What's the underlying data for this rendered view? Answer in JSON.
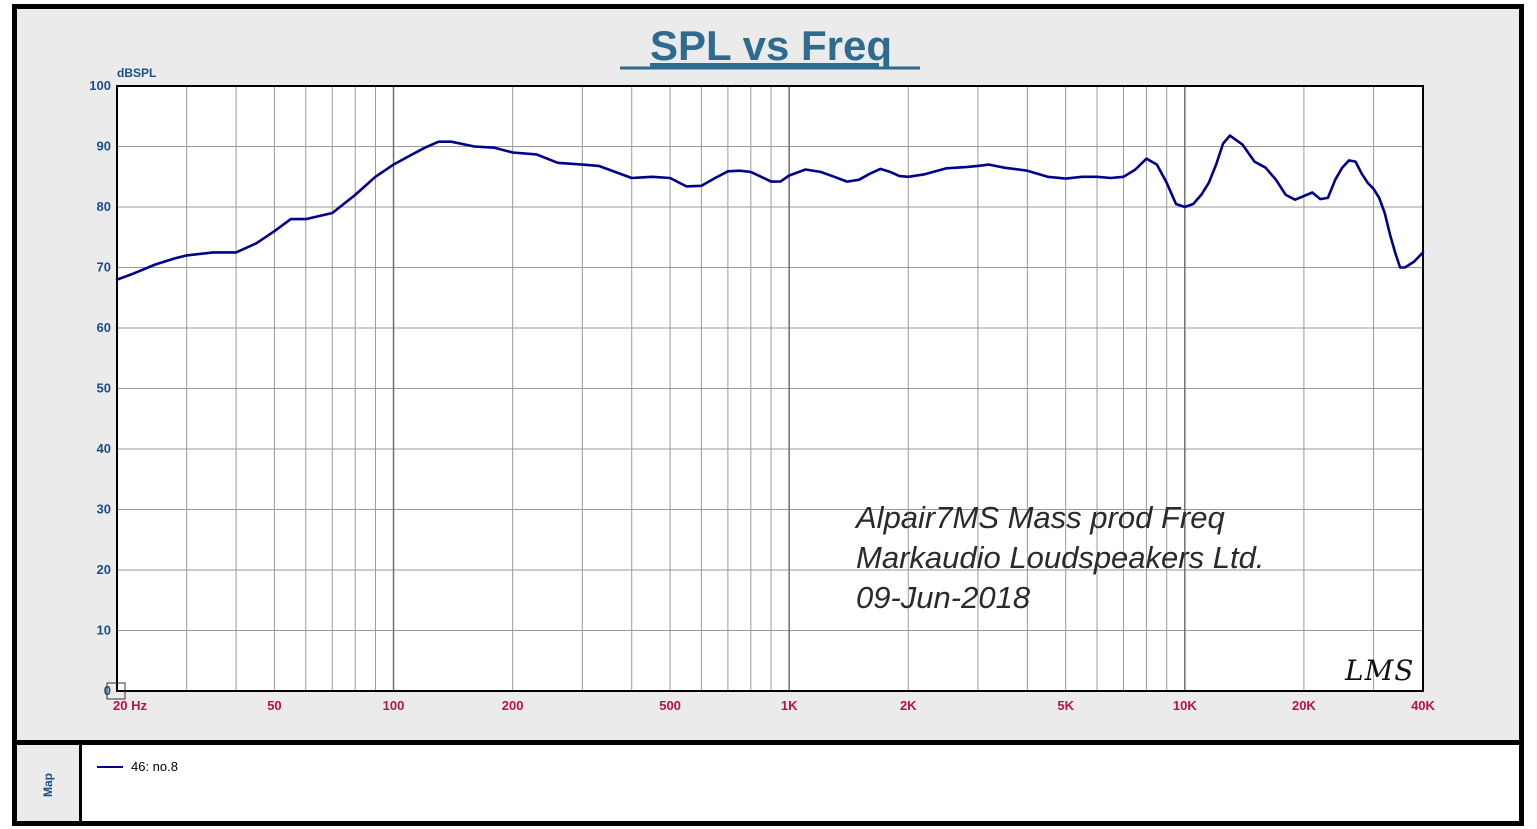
{
  "chart_data": {
    "type": "line",
    "title": "SPL vs Freq",
    "ylabel": "dBSPL",
    "xlabel": "",
    "x_scale": "log",
    "xlim": [
      20,
      40000
    ],
    "ylim": [
      0,
      100
    ],
    "y_ticks": [
      0,
      10,
      20,
      30,
      40,
      50,
      60,
      70,
      80,
      90,
      100
    ],
    "y_tick_labels": [
      "0",
      "10",
      "20",
      "30",
      "40",
      "50",
      "60",
      "70",
      "80",
      "90",
      "100"
    ],
    "x_ticks": [
      20,
      50,
      100,
      200,
      500,
      1000,
      2000,
      5000,
      10000,
      20000,
      40000
    ],
    "x_tick_labels": [
      "20 Hz",
      "50",
      "100",
      "200",
      "500",
      "1K",
      "2K",
      "5K",
      "10K",
      "20K",
      "40K"
    ],
    "grid": true,
    "annotations": [
      "Alpair7MS Mass prod Freq",
      "Markaudio Loudspeakers Ltd.",
      "09-Jun-2018"
    ],
    "logo": "LMS",
    "series": [
      {
        "name": "46: no.8",
        "color": "#00008b",
        "x": [
          20,
          22,
          25,
          28,
          30,
          35,
          40,
          45,
          50,
          55,
          60,
          70,
          80,
          90,
          100,
          110,
          120,
          130,
          140,
          160,
          180,
          200,
          230,
          260,
          300,
          330,
          400,
          450,
          500,
          550,
          600,
          650,
          700,
          750,
          800,
          850,
          900,
          950,
          1000,
          1100,
          1200,
          1300,
          1400,
          1500,
          1600,
          1700,
          1800,
          1900,
          2000,
          2200,
          2500,
          2800,
          3000,
          3200,
          3500,
          4000,
          4500,
          5000,
          5500,
          6000,
          6500,
          7000,
          7500,
          8000,
          8500,
          9000,
          9500,
          10000,
          10500,
          11000,
          11500,
          12000,
          12500,
          13000,
          14000,
          15000,
          16000,
          17000,
          18000,
          19000,
          20000,
          21000,
          22000,
          23000,
          24000,
          25000,
          26000,
          27000,
          28000,
          29000,
          30000,
          31000,
          32000,
          33000,
          34000,
          35000,
          36000,
          37000,
          38000,
          40000
        ],
        "y": [
          68,
          69,
          70.5,
          71.5,
          72,
          72.5,
          72.5,
          74,
          76,
          78,
          78,
          79,
          82,
          85,
          87,
          88.5,
          89.8,
          90.8,
          90.8,
          90,
          89.8,
          89,
          88.7,
          87.3,
          87,
          86.8,
          84.8,
          85,
          84.8,
          83.4,
          83.5,
          84.8,
          85.9,
          86,
          85.8,
          85,
          84.2,
          84.2,
          85.2,
          86.2,
          85.8,
          85,
          84.2,
          84.5,
          85.5,
          86.3,
          85.8,
          85.1,
          85,
          85.4,
          86.4,
          86.6,
          86.8,
          87,
          86.5,
          86,
          85,
          84.7,
          85,
          85,
          84.8,
          85,
          86.2,
          88,
          87,
          84,
          80.5,
          80,
          80.5,
          82,
          84,
          87,
          90.5,
          91.8,
          90.3,
          87.5,
          86.5,
          84.5,
          82,
          81.2,
          81.8,
          82.4,
          81.3,
          81.5,
          84.5,
          86.5,
          87.7,
          87.5,
          85.5,
          84,
          83,
          81.5,
          79,
          75.5,
          72.5,
          70,
          70,
          70.5,
          71,
          72.5
        ]
      }
    ]
  },
  "legend": {
    "panel_label": "Map",
    "entries": [
      {
        "label": "46: no.8",
        "color": "#00008b"
      }
    ]
  },
  "colors": {
    "title": "#2f6b8e",
    "y_tick": "#1a4f8a",
    "x_tick": "#b5134a",
    "grid": "#9a9a9a",
    "plot_bg": "#ffffff",
    "frame_bg": "#ebebeb",
    "curve": "#00008b"
  }
}
